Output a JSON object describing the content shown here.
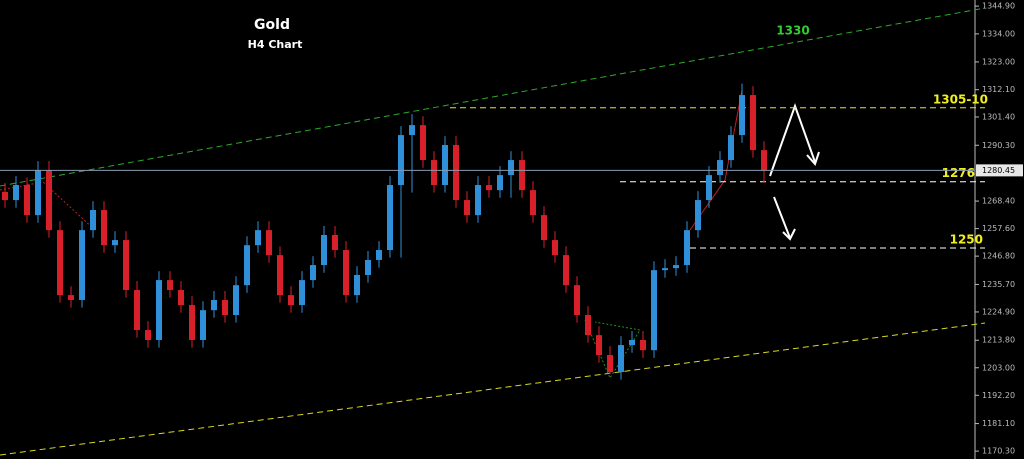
{
  "chart_data": {
    "type": "candlestick",
    "title": "Gold",
    "subtitle": "H4 Chart",
    "up_color": "#2f8fd8",
    "down_color": "#d8202a",
    "ylim": [
      1167.2,
      1347.3
    ],
    "yticks": [
      {
        "value": 1344.9,
        "label": "1344.90"
      },
      {
        "value": 1334,
        "label": "1334.00"
      },
      {
        "value": 1323,
        "label": "1323.00"
      },
      {
        "value": 1312.1,
        "label": "1312.10"
      },
      {
        "value": 1301.4,
        "label": "1301.40"
      },
      {
        "value": 1290.3,
        "label": "1290.30"
      },
      {
        "value": 1268.4,
        "label": "1268.40"
      },
      {
        "value": 1257.6,
        "label": "1257.60"
      },
      {
        "value": 1246.8,
        "label": "1246.80"
      },
      {
        "value": 1235.7,
        "label": "1235.70"
      },
      {
        "value": 1224.9,
        "label": "1224.90"
      },
      {
        "value": 1213.8,
        "label": "1213.80"
      },
      {
        "value": 1203,
        "label": "1203.00"
      },
      {
        "value": 1192.2,
        "label": "1192.20"
      },
      {
        "value": 1181.1,
        "label": "1181.10"
      },
      {
        "value": 1170.3,
        "label": "1170.30"
      }
    ],
    "last_price": {
      "value": 1280.45,
      "label": "1280.45"
    },
    "levels": [
      {
        "label": "1305-10",
        "value": 1305,
        "color": "#e6e62e"
      },
      {
        "label": "1276",
        "value": 1276,
        "color": "#ffffff"
      },
      {
        "label": "1250",
        "value": 1250,
        "color": "#ffffff"
      }
    ],
    "trend_label": {
      "text": "1330",
      "color": "#33cc33"
    },
    "open": [
      1272,
      1268.8,
      1274.7,
      1262.9,
      1280.6,
      1257.0,
      1231.5,
      1229.6,
      1257.0,
      1264.9,
      1251.1,
      1253.1,
      1233.5,
      1217.8,
      1213.9,
      1237.4,
      1233.5,
      1227.6,
      1213.9,
      1225.6,
      1229.6,
      1223.7,
      1235.4,
      1251.1,
      1257.0,
      1247.2,
      1231.5,
      1227.6,
      1237.4,
      1243.3,
      1255.1,
      1249.2,
      1231.5,
      1239.4,
      1245.3,
      1249.2,
      1274.7,
      1294.3,
      1298.2,
      1284.5,
      1274.7,
      1290.4,
      1268.8,
      1262.9,
      1274.7,
      1272.7,
      1278.6,
      1284.5,
      1272.7,
      1262.9,
      1253.1,
      1247.2,
      1235.4,
      1223.7,
      1215.8,
      1208.0,
      1201.3,
      1211.9,
      1213.9,
      1209.9,
      1241.3,
      1242.1,
      1243.3,
      1257.0,
      1268.8,
      1278.6,
      1284.5,
      1294.3,
      1310.0,
      1288.4
    ],
    "high": [
      1275.5,
      1278.2,
      1277.7,
      1284.1,
      1284.1,
      1260.5,
      1235.0,
      1260.5,
      1268.4,
      1268.4,
      1256.6,
      1256.6,
      1237.0,
      1221.3,
      1240.9,
      1240.9,
      1237.0,
      1231.1,
      1229.1,
      1233.1,
      1233.1,
      1238.9,
      1254.6,
      1260.5,
      1260.5,
      1250.7,
      1235.0,
      1240.9,
      1246.8,
      1258.6,
      1258.6,
      1252.7,
      1242.9,
      1248.8,
      1252.7,
      1278.2,
      1297.8,
      1302.5,
      1301.7,
      1288.0,
      1293.9,
      1293.9,
      1272.3,
      1278.2,
      1278.2,
      1282.1,
      1288.0,
      1288.0,
      1276.2,
      1266.4,
      1256.6,
      1250.7,
      1238.9,
      1227.2,
      1219.3,
      1211.5,
      1215.4,
      1217.4,
      1217.4,
      1244.8,
      1245.6,
      1246.8,
      1260.5,
      1272.3,
      1282.1,
      1288.0,
      1297.8,
      1314.5,
      1313.5,
      1291.9
    ],
    "low": [
      1265.8,
      1265.8,
      1259.9,
      1259.9,
      1254.0,
      1228.5,
      1226.6,
      1226.6,
      1254.0,
      1248.1,
      1248.1,
      1230.5,
      1214.8,
      1210.9,
      1210.9,
      1230.5,
      1224.6,
      1210.9,
      1210.9,
      1222.6,
      1220.7,
      1220.7,
      1232.4,
      1248.1,
      1244.2,
      1228.5,
      1224.6,
      1224.6,
      1234.4,
      1240.3,
      1246.2,
      1228.5,
      1228.5,
      1236.4,
      1242.3,
      1246.2,
      1246.2,
      1271.7,
      1281.5,
      1271.7,
      1271.7,
      1265.8,
      1259.9,
      1259.9,
      1269.7,
      1269.7,
      1269.7,
      1269.7,
      1259.9,
      1250.1,
      1244.2,
      1232.4,
      1220.7,
      1212.8,
      1205.0,
      1200.5,
      1198.3,
      1208.9,
      1206.9,
      1206.9,
      1238.3,
      1239.1,
      1240.3,
      1254.0,
      1265.8,
      1275.6,
      1281.5,
      1291.3,
      1285.4,
      1275.6
    ],
    "close": [
      1268.8,
      1274.7,
      1262.9,
      1280.6,
      1257.0,
      1231.5,
      1229.6,
      1257.0,
      1264.9,
      1251.1,
      1253.1,
      1233.5,
      1217.8,
      1213.9,
      1237.4,
      1233.5,
      1227.6,
      1213.9,
      1225.6,
      1229.6,
      1223.7,
      1235.4,
      1251.1,
      1257.0,
      1247.2,
      1231.5,
      1227.6,
      1237.4,
      1243.3,
      1255.1,
      1249.2,
      1231.5,
      1239.4,
      1245.3,
      1249.2,
      1274.7,
      1294.3,
      1298.2,
      1284.5,
      1274.7,
      1290.4,
      1268.8,
      1262.9,
      1274.7,
      1272.7,
      1278.6,
      1284.5,
      1272.7,
      1262.9,
      1253.1,
      1247.2,
      1235.4,
      1223.7,
      1215.8,
      1208.0,
      1201.3,
      1211.9,
      1213.9,
      1209.9,
      1241.3,
      1242.1,
      1243.3,
      1257.0,
      1268.8,
      1278.6,
      1284.5,
      1294.3,
      1310.0,
      1288.4,
      1280.4
    ]
  }
}
